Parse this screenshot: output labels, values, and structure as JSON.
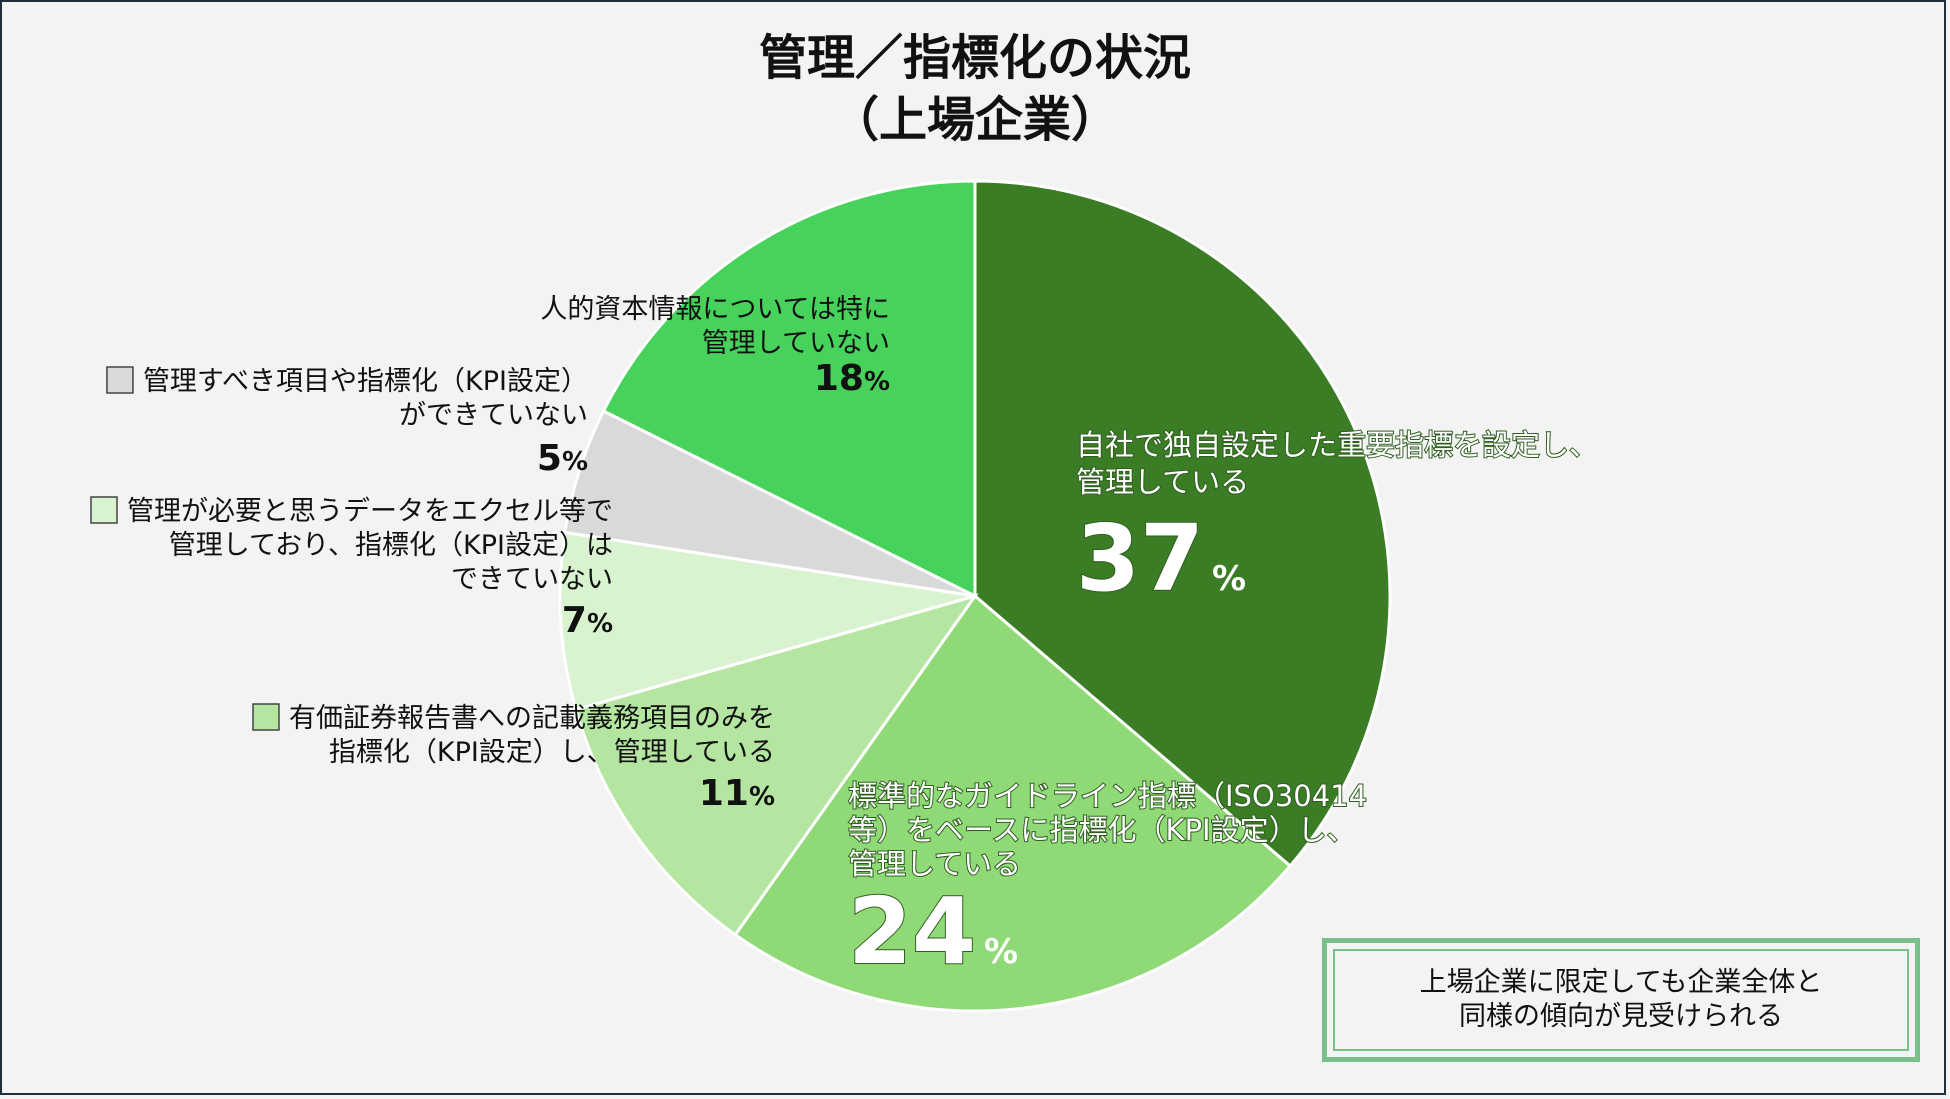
{
  "chart_data": {
    "type": "pie",
    "title_lines": [
      "管理／指標化の状況",
      "（上場企業）"
    ],
    "start": "12 o'clock",
    "direction": "clockwise",
    "slices": [
      {
        "label_lines": [
          "自社で独自設定した重要指標を設定し、",
          "管理している"
        ],
        "value": 37,
        "pct_num": "37",
        "pct_sym": "%",
        "color": "#3b7d24",
        "label_style": "inside-white",
        "legend": false
      },
      {
        "label_lines": [
          "標準的なガイドライン指標（ISO30414",
          "等）をベースに指標化（KPI設定）し、",
          "管理している"
        ],
        "value": 24,
        "pct_num": "24",
        "pct_sym": "%",
        "color": "#90d977",
        "label_style": "inside-white",
        "legend": false
      },
      {
        "label_lines": [
          "有価証券報告書への記載義務項目のみを",
          "指標化（KPI設定）し、管理している"
        ],
        "value": 11,
        "pct_num": "11",
        "pct_sym": "%",
        "color": "#b4e5a1",
        "label_style": "outside-dark",
        "legend": true
      },
      {
        "label_lines": [
          "管理が必要と思うデータをエクセル等で",
          "管理しており、指標化（KPI設定）は",
          "できていない"
        ],
        "value": 7,
        "pct_num": "7",
        "pct_sym": "%",
        "color": "#d9f3d0",
        "label_style": "outside-dark",
        "legend": true
      },
      {
        "label_lines": [
          "管理すべき項目や指標化（KPI設定）",
          "ができていない"
        ],
        "value": 5,
        "pct_num": "5",
        "pct_sym": "%",
        "color": "#d9d9d9",
        "label_style": "outside-dark",
        "legend": true
      },
      {
        "label_lines": [
          "人的資本情報については特に",
          "管理していない"
        ],
        "value": 18,
        "pct_num": "18",
        "pct_sym": "%",
        "color": "#47d35b",
        "label_style": "inside-dark",
        "legend": false
      }
    ]
  },
  "note": {
    "text": "上場企業に限定しても企業全体と\n同様の傾向が見受けられる",
    "border_color": "#7bbf8c"
  }
}
